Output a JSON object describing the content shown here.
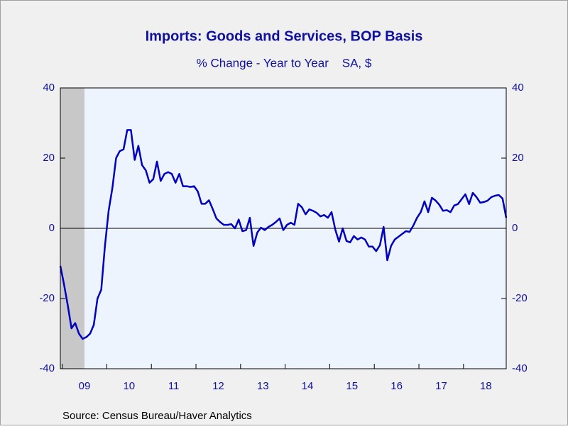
{
  "chart_data": {
    "type": "line",
    "title": "Imports: Goods and Services, BOP Basis",
    "subtitle": "% Change - Year to Year    SA, $",
    "source": "Source:  Census Bureau/Haver Analytics",
    "categories": [
      null,
      null,
      null,
      null,
      null,
      null,
      "09",
      null,
      null,
      null,
      null,
      null,
      null,
      null,
      null,
      null,
      null,
      null,
      "10",
      null,
      null,
      null,
      null,
      null,
      null,
      null,
      null,
      null,
      null,
      null,
      "11",
      null,
      null,
      null,
      null,
      null,
      null,
      null,
      null,
      null,
      null,
      null,
      "12",
      null,
      null,
      null,
      null,
      null,
      null,
      null,
      null,
      null,
      null,
      null,
      "13",
      null,
      null,
      null,
      null,
      null,
      null,
      null,
      null,
      null,
      null,
      null,
      "14",
      null,
      null,
      null,
      null,
      null,
      null,
      null,
      null,
      null,
      null,
      null,
      "15",
      null,
      null,
      null,
      null,
      null,
      null,
      null,
      null,
      null,
      null,
      null,
      "16",
      null,
      null,
      null,
      null,
      null,
      null,
      null,
      null,
      null,
      null,
      null,
      "17",
      null,
      null,
      null,
      null,
      null,
      null,
      null,
      null,
      null,
      null,
      null,
      "18",
      null,
      null,
      null,
      null,
      null,
      null
    ],
    "series": [
      {
        "name": "Imports",
        "color": "#0000c0",
        "values": [
          -10.7,
          -16,
          -22,
          -28.5,
          -27,
          -30,
          -31.5,
          -31,
          -30,
          -27.5,
          -20,
          -17.5,
          -5,
          5,
          11.5,
          20,
          22,
          22.5,
          28,
          28,
          19.5,
          23.5,
          18,
          16.5,
          13,
          14,
          19,
          13.5,
          15.5,
          16,
          15.5,
          13,
          15.5,
          12,
          12,
          11.8,
          12,
          10.5,
          7,
          7,
          8,
          5.5,
          2.8,
          1.8,
          1,
          1,
          1.2,
          0,
          2.5,
          -0.8,
          -0.5,
          3,
          -5,
          -1.2,
          0.2,
          -0.5,
          0.4,
          1,
          1.8,
          2.8,
          -0.5,
          1,
          1.6,
          1,
          7,
          6,
          4,
          5.4,
          5,
          4.4,
          3.4,
          3.8,
          3,
          4.6,
          -0.4,
          -3.8,
          0,
          -3.6,
          -4,
          -2.2,
          -3.2,
          -2.6,
          -3.2,
          -5.2,
          -5.2,
          -6.5,
          -4.8,
          0.4,
          -9.1,
          -5,
          -3.2,
          -2.4,
          -1.6,
          -0.8,
          -1,
          0.8,
          3,
          4.6,
          7.7,
          4.6,
          8.7,
          7.9,
          6.7,
          5,
          5.2,
          4.6,
          6.5,
          6.9,
          8.3,
          9.7,
          6.9,
          10.1,
          8.9,
          7.3,
          7.5,
          7.9,
          8.9,
          9.3,
          9.5,
          8.5,
          3
        ]
      }
    ],
    "ylim": [
      -40,
      40
    ],
    "yticks": [
      -40,
      -20,
      0,
      20,
      40
    ],
    "zero_line": true
  }
}
